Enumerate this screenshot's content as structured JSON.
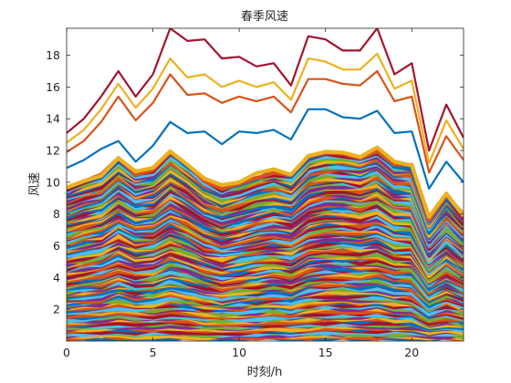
{
  "chart_data": {
    "type": "line",
    "title": "春季风速",
    "xlabel": "时刻/h",
    "ylabel": "风速",
    "xlim": [
      0,
      23
    ],
    "ylim": [
      0,
      19.7
    ],
    "xticks": [
      0,
      5,
      10,
      15,
      20
    ],
    "yticks": [
      2,
      4,
      6,
      8,
      10,
      12,
      14,
      16,
      18
    ],
    "grid": false,
    "legend": "none",
    "x": [
      0,
      1,
      2,
      3,
      4,
      5,
      6,
      7,
      8,
      9,
      10,
      11,
      12,
      13,
      14,
      15,
      16,
      17,
      18,
      19,
      20,
      21,
      22,
      23
    ],
    "series": [
      {
        "color": "#A2142F",
        "values": [
          13.1,
          14.0,
          15.4,
          17.0,
          15.4,
          16.8,
          19.7,
          18.9,
          19.0,
          17.8,
          17.9,
          17.3,
          17.5,
          16.1,
          19.2,
          19.0,
          18.3,
          18.3,
          19.7,
          16.8,
          17.5,
          12.0,
          14.9,
          12.8
        ]
      },
      {
        "color": "#EDB120",
        "values": [
          12.5,
          13.3,
          14.6,
          16.2,
          14.7,
          15.9,
          17.8,
          16.6,
          16.8,
          16.0,
          16.4,
          16.0,
          16.3,
          15.2,
          17.8,
          17.6,
          17.1,
          17.1,
          18.1,
          15.9,
          16.4,
          11.2,
          13.9,
          12.1
        ]
      },
      {
        "color": "#D95319",
        "values": [
          11.9,
          12.6,
          13.8,
          15.4,
          13.9,
          15.0,
          16.8,
          15.5,
          15.6,
          15.0,
          15.4,
          15.1,
          15.4,
          14.4,
          16.5,
          16.5,
          16.2,
          16.1,
          17.0,
          15.1,
          15.4,
          10.6,
          12.9,
          11.4
        ]
      },
      {
        "color": "#0072BD",
        "values": [
          10.9,
          11.4,
          12.1,
          12.6,
          11.3,
          12.3,
          13.8,
          13.1,
          13.2,
          12.4,
          13.2,
          13.1,
          13.3,
          12.7,
          14.6,
          14.6,
          14.1,
          14.0,
          14.5,
          13.1,
          13.2,
          9.6,
          11.3,
          10.0
        ]
      }
    ]
  }
}
